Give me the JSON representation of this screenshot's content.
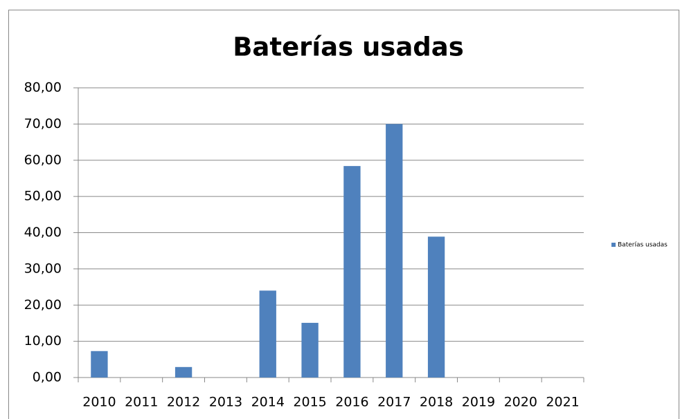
{
  "chart_data": {
    "type": "bar",
    "title": "Baterías usadas",
    "categories": [
      "2010",
      "2011",
      "2012",
      "2013",
      "2014",
      "2015",
      "2016",
      "2017",
      "2018",
      "2019",
      "2020",
      "2021"
    ],
    "series": [
      {
        "name": "Baterías usadas",
        "color": "#4f81bd",
        "values": [
          7.3,
          0,
          2.9,
          0,
          24,
          15.1,
          58.4,
          70,
          38.9,
          0,
          0,
          0
        ]
      }
    ],
    "ylim": [
      0,
      80
    ],
    "yticks": [
      {
        "value": 0,
        "label": "0,00"
      },
      {
        "value": 10,
        "label": "10,00"
      },
      {
        "value": 20,
        "label": "20,00"
      },
      {
        "value": 30,
        "label": "30,00"
      },
      {
        "value": 40,
        "label": "40,00"
      },
      {
        "value": 50,
        "label": "50,00"
      },
      {
        "value": 60,
        "label": "60,00"
      },
      {
        "value": 70,
        "label": "70,00"
      },
      {
        "value": 80,
        "label": "80,00"
      }
    ],
    "grid": true,
    "legend": "right"
  }
}
